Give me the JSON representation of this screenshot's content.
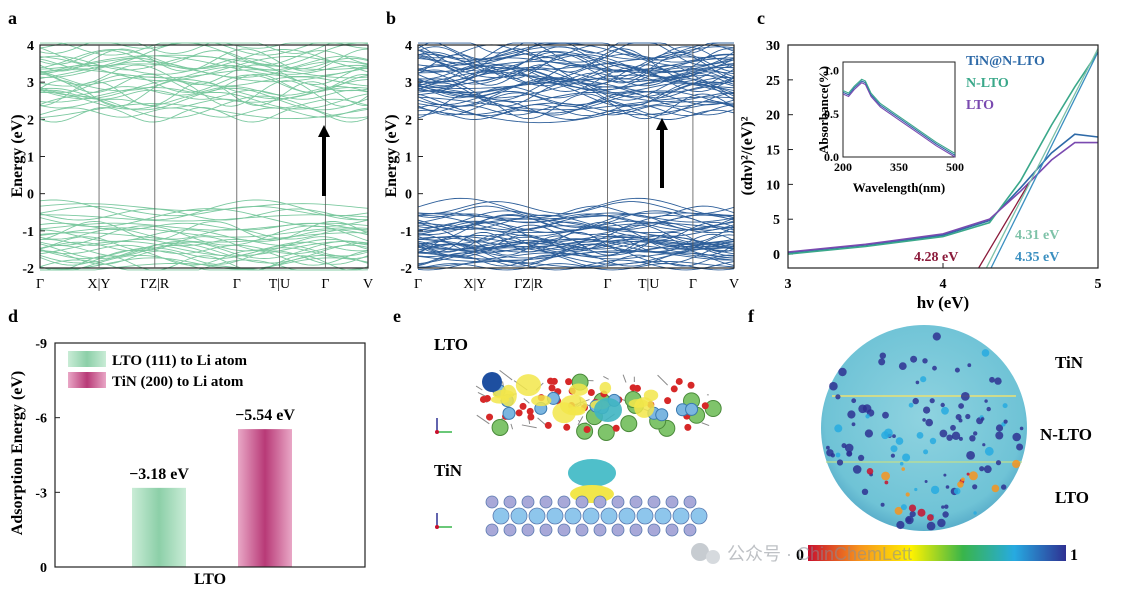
{
  "panels": {
    "a": {
      "letter": "a",
      "ylabel": "Energy (eV)",
      "yticks": [
        "4",
        "3",
        "2",
        "1",
        "0",
        "-1",
        "-2"
      ],
      "xticks": [
        "Γ",
        "X|Y",
        "ΓZ|R",
        "Γ",
        "T|U",
        "Γ",
        "V"
      ]
    },
    "b": {
      "letter": "b",
      "ylabel": "Energy (eV)",
      "yticks": [
        "4",
        "3",
        "2",
        "1",
        "0",
        "-1",
        "-2"
      ],
      "xticks": [
        "Γ",
        "X|Y",
        "ΓZ|R",
        "Γ",
        "T|U",
        "Γ",
        "V"
      ]
    },
    "c": {
      "letter": "c",
      "ylabel": "(αhν)²/(eV)²",
      "xlabel": "hν (eV)",
      "yticks": [
        "30",
        "25",
        "20",
        "15",
        "10",
        "5",
        "0"
      ],
      "xticks": [
        "3",
        "4",
        "5"
      ],
      "legend": [
        "TiN@N-LTO",
        "N-LTO",
        "LTO"
      ],
      "annotations": [
        "4.28 eV",
        "4.31 eV",
        "4.35 eV"
      ],
      "inset": {
        "ylabel": "Absorbance(%)",
        "xlabel": "Wavelength(nm)",
        "yticks": [
          "1.0",
          "0.5",
          "0.0"
        ],
        "xticks": [
          "200",
          "350",
          "500"
        ]
      }
    },
    "d": {
      "letter": "d",
      "ylabel": "Adsorption Energy (eV)",
      "xlabel": "LTO",
      "yticks": [
        "-9",
        "-6",
        "-3",
        "0"
      ],
      "legend": [
        "LTO (111) to Li atom",
        "TiN (200) to Li atom"
      ],
      "bar_labels": [
        "−3.18 eV",
        "−5.54 eV"
      ]
    },
    "e": {
      "letter": "e",
      "labels": [
        "LTO",
        "TiN"
      ]
    },
    "f": {
      "letter": "f",
      "labels": [
        "TiN",
        "N-LTO",
        "LTO"
      ],
      "colorbar": [
        "0",
        "1"
      ]
    }
  },
  "watermark": "公众号 · ChinChemLett",
  "colors": {
    "band_a": "#7cc9a0",
    "band_b": "#2e5f9a",
    "tauc_tin": "#2e6aa8",
    "tauc_nlto": "#3aa88a",
    "tauc_lto": "#7a4ab0",
    "bar_lto": "#9fd6b4",
    "bar_tin": "#c44a83",
    "fit_lto": "#8b1a3a",
    "fit_nlto": "#7ec2a8",
    "fit_tin": "#3a8fc0"
  },
  "chart_data": [
    {
      "type": "line",
      "panel": "a",
      "title": "",
      "ylabel": "Energy (eV)",
      "ylim": [
        -2,
        4
      ],
      "categories": [
        "Γ",
        "X|Y",
        "ΓZ|R",
        "Γ",
        "T|U",
        "Γ",
        "V"
      ],
      "bands": "dense electronic band structure, conduction bands ~2-4 eV, valence bands ~-2 to -0.3 eV"
    },
    {
      "type": "line",
      "panel": "b",
      "title": "",
      "ylabel": "Energy (eV)",
      "ylim": [
        -2,
        4
      ],
      "categories": [
        "Γ",
        "X|Y",
        "ΓZ|R",
        "Γ",
        "T|U",
        "Γ",
        "V"
      ],
      "bands": "dense electronic band structure, conduction bands ~2.2-4 eV, valence bands ~-2 to -0.1 eV"
    },
    {
      "type": "line",
      "panel": "c",
      "xlabel": "hν (eV)",
      "ylabel": "(αhν)²/(eV)²",
      "xlim": [
        3,
        5
      ],
      "ylim": [
        -2,
        30
      ],
      "series": [
        {
          "name": "TiN@N-LTO",
          "x": [
            3.0,
            3.5,
            4.0,
            4.3,
            4.5,
            4.7,
            4.85,
            5.0
          ],
          "y": [
            0.2,
            1.3,
            2.7,
            4.8,
            9.5,
            14.5,
            17.2,
            16.8
          ]
        },
        {
          "name": "N-LTO",
          "x": [
            3.0,
            3.5,
            4.0,
            4.3,
            4.5,
            4.7,
            4.85,
            5.0
          ],
          "y": [
            0.0,
            1.1,
            2.5,
            4.5,
            10.5,
            18.5,
            24.0,
            29.0
          ]
        },
        {
          "name": "LTO",
          "x": [
            3.0,
            3.5,
            4.0,
            4.3,
            4.5,
            4.7,
            4.85,
            5.0
          ],
          "y": [
            0.3,
            1.4,
            2.9,
            5.0,
            9.0,
            13.5,
            16.0,
            16.0
          ]
        }
      ],
      "inset": {
        "xlabel": "Wavelength(nm)",
        "ylabel": "Absorbance(%)",
        "xlim": [
          200,
          500
        ],
        "ylim": [
          0,
          1.1
        ],
        "x": [
          200,
          215,
          230,
          250,
          260,
          275,
          300,
          350,
          400,
          450,
          500
        ],
        "y": [
          0.75,
          0.72,
          0.8,
          0.88,
          0.86,
          0.72,
          0.6,
          0.45,
          0.3,
          0.15,
          0.02
        ]
      }
    },
    {
      "type": "bar",
      "panel": "d",
      "xlabel": "LTO",
      "ylabel": "Adsorption Energy (eV)",
      "ylim": [
        0,
        -9
      ],
      "categories": [
        "LTO (111) to Li atom",
        "TiN (200) to Li atom"
      ],
      "values": [
        -3.18,
        -5.54
      ]
    }
  ]
}
